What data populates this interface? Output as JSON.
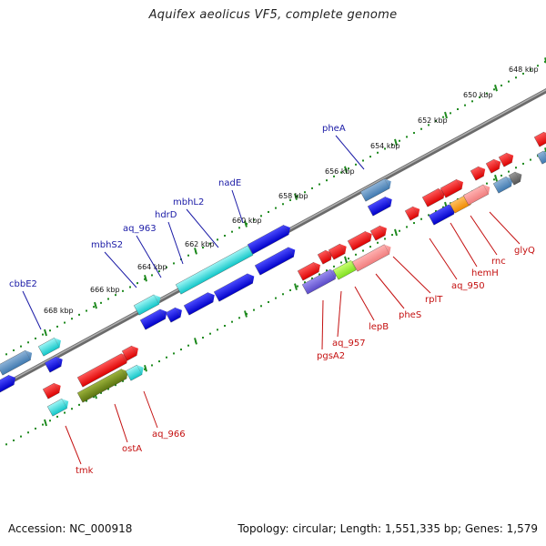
{
  "title": "Aquifex aeolicus VF5, complete genome",
  "footer": {
    "accession": "Accession: NC_000918",
    "info": "Topology: circular; Length: 1,551,335 bp; Genes: 1,579"
  },
  "colors": {
    "backbone": "#7a7a7a",
    "tick": "#1f8a1f",
    "label_forward": "#1a1aa6",
    "label_reverse": "#c41010"
  },
  "scale_labels": [
    "668 kbp",
    "666 kbp",
    "664 kbp",
    "662 kbp",
    "660 kbp",
    "658 kbp",
    "656 kbp",
    "654 kbp",
    "652 kbp",
    "650 kbp",
    "648 kbp"
  ],
  "forward_gene_labels": [
    "cbbE2",
    "mbhS2",
    "aq_963",
    "hdrD",
    "mbhL2",
    "nadE",
    "pheA"
  ],
  "reverse_gene_labels": [
    "tmk",
    "ostA",
    "aq_966",
    "pgsA2",
    "aq_957",
    "lepB",
    "pheS",
    "rplT",
    "aq_950",
    "hemH",
    "rnc",
    "glyQ"
  ]
}
